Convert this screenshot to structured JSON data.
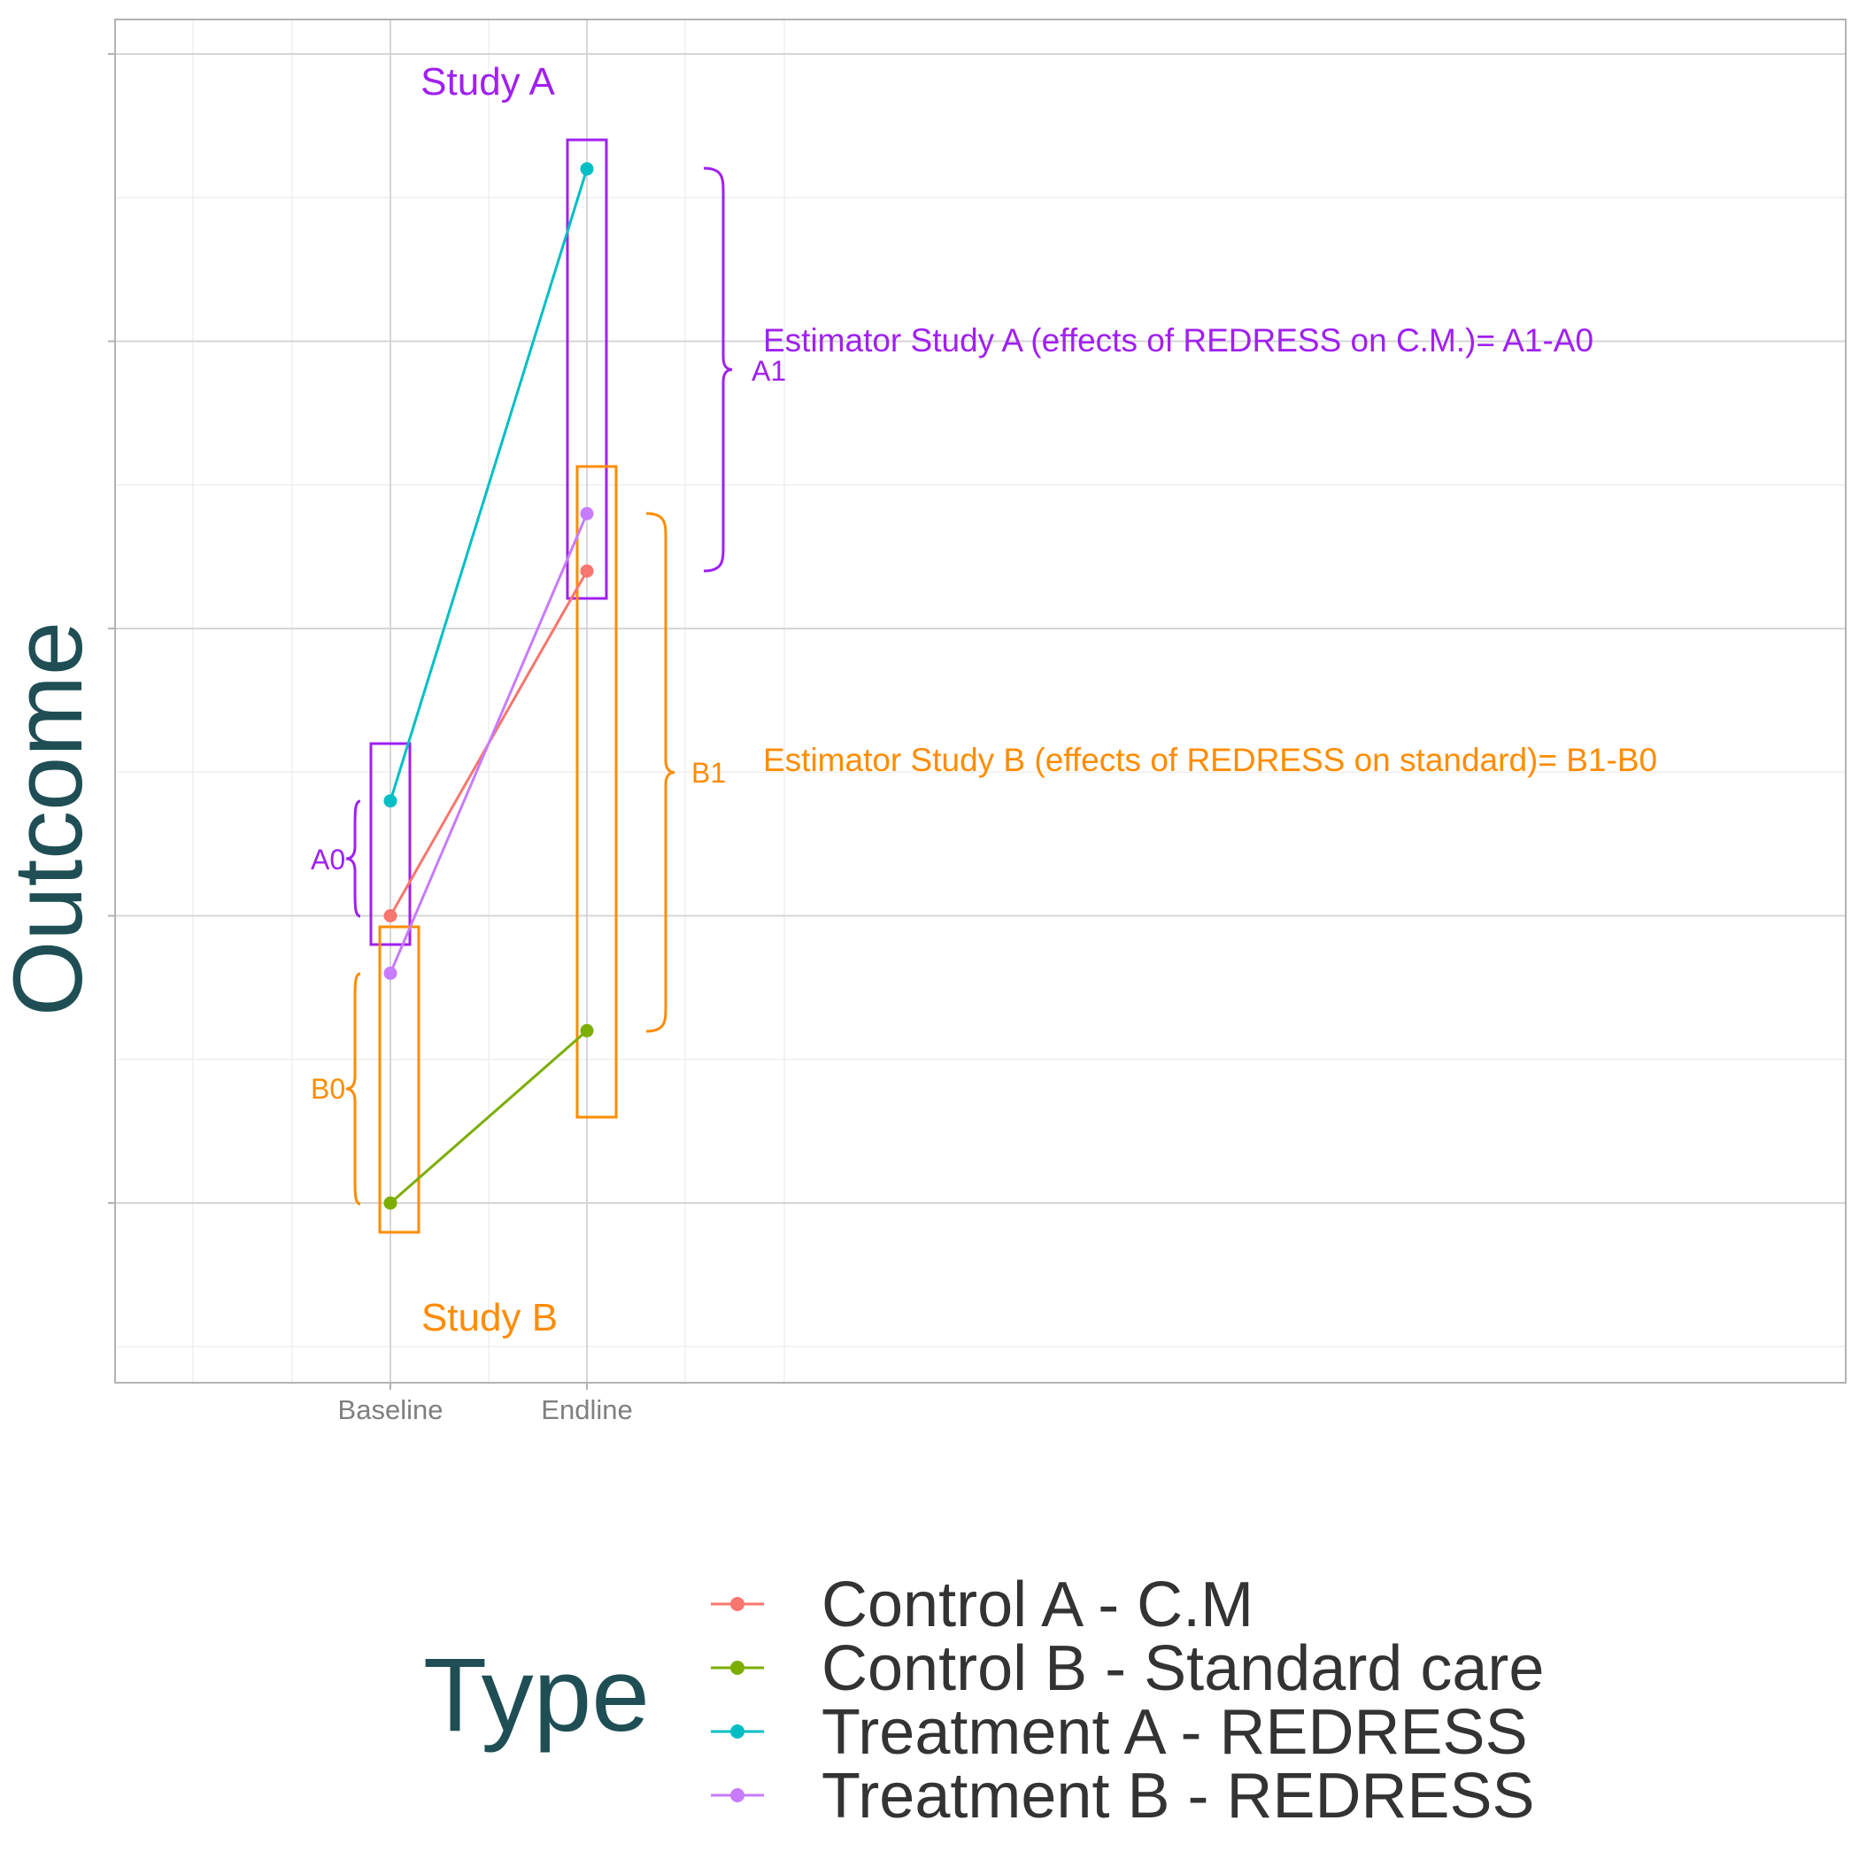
{
  "chart_data": {
    "type": "line",
    "x": [
      "Baseline",
      "Endline"
    ],
    "ylabel": "Outcome",
    "xlabel": "",
    "ylim": [
      -0.6,
      4.0
    ],
    "grid": true,
    "series": [
      {
        "name": "Control A - C.M",
        "color": "#F8766D",
        "values": [
          1.0,
          2.2
        ]
      },
      {
        "name": "Control B - Standard care",
        "color": "#7CAE00",
        "values": [
          0.0,
          0.6
        ]
      },
      {
        "name": "Treatment A - REDRESS",
        "color": "#00BFC4",
        "values": [
          1.4,
          3.6
        ]
      },
      {
        "name": "Treatment B - REDRESS",
        "color": "#C77CFF",
        "values": [
          0.8,
          2.4
        ]
      }
    ],
    "annotations": {
      "study_a_label": "Study A",
      "study_b_label": "Study B",
      "a0": "A0",
      "a1": "A1",
      "b0": "B0",
      "b1": "B1",
      "estimator_a": "Estimator Study A (effects of REDRESS on C.M.)= A1-A0",
      "estimator_b": "Estimator Study B (effects of REDRESS on standard)= B1-B0"
    },
    "annotation_colors": {
      "study_a": "#A020F0",
      "study_b": "#FF8C00"
    },
    "legend": {
      "title": "Type",
      "placement": "bottom"
    }
  }
}
